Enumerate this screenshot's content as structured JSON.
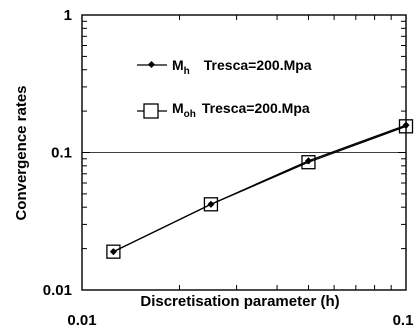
{
  "chart_data": {
    "type": "line",
    "xlabel": "Discretisation parameter (h)",
    "ylabel": "Convergence rates",
    "xscale": "log",
    "yscale": "log",
    "xlim": [
      0.01,
      0.1
    ],
    "ylim": [
      0.01,
      1
    ],
    "grid": "horizontal line at y = 0.1",
    "legend_placement": "top-center",
    "x_tick_labels": [
      "0.01",
      "0.1"
    ],
    "y_tick_labels": [
      "0.01",
      "0.1",
      "1"
    ],
    "series": [
      {
        "name_main": "M",
        "name_sub": "h",
        "name_rest": "Tresca=200.Mpa",
        "marker": "small filled diamond",
        "x": [
          0.0125,
          0.025,
          0.05,
          0.1
        ],
        "y": [
          0.019,
          0.042,
          0.087,
          0.158
        ]
      },
      {
        "name_main": "M",
        "name_sub": "oh",
        "name_rest": "Tresca=200.Mpa",
        "marker": "open square",
        "x": [
          0.0125,
          0.025,
          0.05,
          0.1
        ],
        "y": [
          0.019,
          0.042,
          0.085,
          0.155
        ]
      }
    ],
    "colors": {
      "line": "#000000",
      "marker_fill_open": "#ffffff"
    }
  }
}
